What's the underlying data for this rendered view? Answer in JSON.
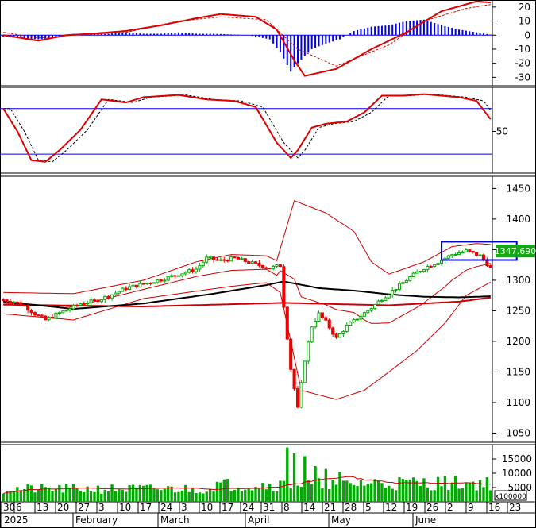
{
  "chart_data": {
    "type": "stock",
    "n_bars": 140,
    "panels": {
      "macd": {
        "yticks": [
          20,
          10,
          0,
          -10,
          -20,
          -30
        ],
        "ylim": [
          -36,
          25
        ],
        "macd_line_color": "#dd0000",
        "signal_line_color": "#dd0000",
        "histogram_color": "#0000ee",
        "key_points": [
          [
            0,
            0
          ],
          [
            5,
            -2
          ],
          [
            10,
            -4
          ],
          [
            18,
            0
          ],
          [
            25,
            1
          ],
          [
            35,
            3
          ],
          [
            45,
            7
          ],
          [
            55,
            12
          ],
          [
            62,
            15
          ],
          [
            72,
            13
          ],
          [
            78,
            4
          ],
          [
            83,
            -18
          ],
          [
            86,
            -29
          ],
          [
            95,
            -24
          ],
          [
            105,
            -10
          ],
          [
            115,
            2
          ],
          [
            125,
            17
          ],
          [
            135,
            24
          ],
          [
            140,
            23
          ],
          [
            148,
            15
          ],
          [
            155,
            12
          ]
        ],
        "signal_points": [
          [
            0,
            2
          ],
          [
            10,
            -2
          ],
          [
            20,
            0
          ],
          [
            35,
            2
          ],
          [
            50,
            10
          ],
          [
            62,
            13
          ],
          [
            75,
            11
          ],
          [
            84,
            -10
          ],
          [
            95,
            -22
          ],
          [
            110,
            -7
          ],
          [
            120,
            10
          ],
          [
            132,
            19
          ],
          [
            142,
            23
          ],
          [
            150,
            17
          ],
          [
            156,
            14
          ]
        ],
        "histogram": [
          [
            0,
            -1
          ],
          [
            5,
            -2
          ],
          [
            10,
            -3
          ],
          [
            15,
            -2
          ],
          [
            20,
            1
          ],
          [
            25,
            1
          ],
          [
            30,
            1
          ],
          [
            35,
            2
          ],
          [
            40,
            1
          ],
          [
            45,
            1
          ],
          [
            50,
            2
          ],
          [
            55,
            1
          ],
          [
            60,
            1
          ],
          [
            70,
            0
          ],
          [
            76,
            -3
          ],
          [
            79,
            -12
          ],
          [
            82,
            -26
          ],
          [
            84,
            -20
          ],
          [
            88,
            -10
          ],
          [
            92,
            -6
          ],
          [
            96,
            -3
          ],
          [
            100,
            3
          ],
          [
            105,
            6
          ],
          [
            110,
            7
          ],
          [
            115,
            10
          ],
          [
            120,
            11
          ],
          [
            125,
            7
          ],
          [
            130,
            4
          ],
          [
            135,
            2
          ],
          [
            140,
            0
          ],
          [
            144,
            -2
          ],
          [
            148,
            -4
          ],
          [
            152,
            -5
          ],
          [
            155,
            -2
          ]
        ]
      },
      "stochastic": {
        "ytick_labels": [
          "50"
        ],
        "upper_level": 80,
        "lower_level": 20,
        "line_color": "#dd0000",
        "key_points": [
          [
            0,
            80
          ],
          [
            4,
            50
          ],
          [
            8,
            12
          ],
          [
            12,
            10
          ],
          [
            16,
            25
          ],
          [
            22,
            52
          ],
          [
            28,
            92
          ],
          [
            35,
            88
          ],
          [
            40,
            95
          ],
          [
            50,
            98
          ],
          [
            58,
            92
          ],
          [
            66,
            90
          ],
          [
            72,
            82
          ],
          [
            78,
            35
          ],
          [
            82,
            15
          ],
          [
            84,
            25
          ],
          [
            88,
            55
          ],
          [
            92,
            60
          ],
          [
            98,
            63
          ],
          [
            103,
            75
          ],
          [
            108,
            97
          ],
          [
            114,
            97
          ],
          [
            120,
            99
          ],
          [
            130,
            95
          ],
          [
            135,
            90
          ],
          [
            142,
            48
          ],
          [
            145,
            55
          ]
        ]
      },
      "price": {
        "yticks": [
          1450,
          1400,
          1350,
          1300,
          1250,
          1200,
          1150,
          1100,
          1050
        ],
        "ylim": [
          1035,
          1470
        ],
        "last_price_label": "1347.690",
        "up_color": "#00aa00",
        "down_color": "#ee0000",
        "bollinger_color": "#cc0000",
        "ma_long_color": "#000000",
        "ma_longer_color": "#cc0000",
        "highlight_box_color": "#0000dd",
        "price_key_points": [
          [
            0,
            1268
          ],
          [
            3,
            1265
          ],
          [
            6,
            1258
          ],
          [
            9,
            1245
          ],
          [
            12,
            1235
          ],
          [
            15,
            1244
          ],
          [
            18,
            1251
          ],
          [
            22,
            1262
          ],
          [
            26,
            1266
          ],
          [
            30,
            1274
          ],
          [
            35,
            1287
          ],
          [
            40,
            1294
          ],
          [
            45,
            1301
          ],
          [
            50,
            1310
          ],
          [
            55,
            1318
          ],
          [
            58,
            1336
          ],
          [
            62,
            1332
          ],
          [
            66,
            1336
          ],
          [
            72,
            1326
          ],
          [
            76,
            1320
          ],
          [
            79,
            1324
          ],
          [
            80,
            1258
          ],
          [
            82,
            1155
          ],
          [
            84,
            1090
          ],
          [
            86,
            1170
          ],
          [
            88,
            1225
          ],
          [
            90,
            1245
          ],
          [
            92,
            1232
          ],
          [
            95,
            1205
          ],
          [
            98,
            1225
          ],
          [
            102,
            1242
          ],
          [
            105,
            1255
          ],
          [
            108,
            1270
          ],
          [
            112,
            1287
          ],
          [
            116,
            1305
          ],
          [
            120,
            1320
          ],
          [
            124,
            1330
          ],
          [
            128,
            1342
          ],
          [
            132,
            1348
          ],
          [
            136,
            1340
          ],
          [
            139,
            1320
          ],
          [
            142,
            1318
          ],
          [
            144,
            1330
          ],
          [
            145,
            1347
          ]
        ],
        "bb_upper_key_points": [
          [
            0,
            1280
          ],
          [
            20,
            1278
          ],
          [
            40,
            1300
          ],
          [
            55,
            1330
          ],
          [
            65,
            1342
          ],
          [
            75,
            1340
          ],
          [
            78,
            1332
          ],
          [
            83,
            1430
          ],
          [
            92,
            1410
          ],
          [
            100,
            1380
          ],
          [
            105,
            1330
          ],
          [
            110,
            1310
          ],
          [
            120,
            1330
          ],
          [
            128,
            1355
          ],
          [
            135,
            1360
          ],
          [
            140,
            1358
          ],
          [
            145,
            1352
          ]
        ],
        "bb_lower_key_points": [
          [
            0,
            1245
          ],
          [
            20,
            1235
          ],
          [
            40,
            1270
          ],
          [
            55,
            1282
          ],
          [
            65,
            1290
          ],
          [
            75,
            1296
          ],
          [
            79,
            1280
          ],
          [
            85,
            1120
          ],
          [
            95,
            1105
          ],
          [
            103,
            1120
          ],
          [
            110,
            1150
          ],
          [
            118,
            1185
          ],
          [
            126,
            1230
          ],
          [
            132,
            1275
          ],
          [
            140,
            1300
          ],
          [
            145,
            1307
          ]
        ],
        "ma_key_points": [
          [
            0,
            1265
          ],
          [
            20,
            1253
          ],
          [
            40,
            1262
          ],
          [
            60,
            1278
          ],
          [
            75,
            1292
          ],
          [
            80,
            1298
          ],
          [
            90,
            1287
          ],
          [
            100,
            1283
          ],
          [
            110,
            1277
          ],
          [
            120,
            1273
          ],
          [
            130,
            1272
          ],
          [
            145,
            1275
          ]
        ],
        "ma2_key_points": [
          [
            0,
            1260
          ],
          [
            40,
            1257
          ],
          [
            80,
            1263
          ],
          [
            110,
            1259
          ],
          [
            130,
            1265
          ],
          [
            145,
            1276
          ]
        ]
      },
      "volume": {
        "ytick_labels": [
          "15000",
          "10000",
          "5000"
        ],
        "unit_label": "x100000",
        "ylim": [
          0,
          20000
        ],
        "bar_color": "#00aa00",
        "ma_color": "#cc0000",
        "spikes": [
          [
            81,
            19000
          ],
          [
            83,
            17000
          ],
          [
            86,
            16000
          ],
          [
            89,
            12500
          ],
          [
            92,
            11500
          ],
          [
            96,
            10500
          ],
          [
            140,
            14000
          ]
        ],
        "baseline": 6500
      }
    },
    "x_axis": {
      "day_labels": [
        "30",
        "6",
        "13",
        "20",
        "27",
        "3",
        "10",
        "17",
        "24",
        "3",
        "10",
        "17",
        "24",
        "31",
        "8",
        "14",
        "21",
        "28",
        "5",
        "12",
        "19",
        "26",
        "2",
        "9",
        "16",
        "23"
      ],
      "month_labels": [
        "2025",
        "February",
        "March",
        "April",
        "May",
        "June"
      ]
    }
  }
}
